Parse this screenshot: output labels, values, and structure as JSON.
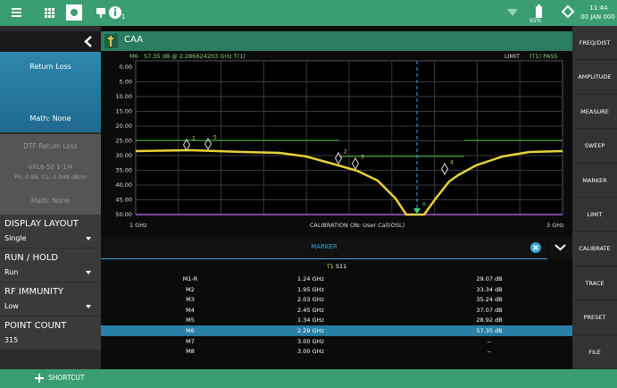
{
  "status_bar": {
    "notification_count": "1",
    "battery": "95%",
    "time": "11:44",
    "date": "00 JAN 000"
  },
  "left_panel": {
    "trace_1": {
      "title": "Return Loss",
      "math": "Math: None"
    },
    "trace_2": {
      "title": "DTF Return Loss",
      "cable": "VXL6-50 1-1/4",
      "params": "PV: 0.88, CL: 0.048 dB/m",
      "math": "Math: None"
    },
    "settings": [
      {
        "label": "DISPLAY LAYOUT",
        "value": "Single",
        "dropdown": true
      },
      {
        "label": "RUN / HOLD",
        "value": "Run",
        "dropdown": true
      },
      {
        "label": "RF IMMUNITY",
        "value": "Low",
        "dropdown": true
      },
      {
        "label": "POINT COUNT",
        "value": "315",
        "dropdown": false
      }
    ]
  },
  "main": {
    "title": "CAA",
    "marker_readout": "M6   57.35 dB @ 2.286624203 GHz T(1)",
    "limit_status": "LIMIT",
    "limit_result": "(T1) PASS",
    "yticks": [
      "0.00",
      "5.00",
      "10.00",
      "15.00",
      "20.00",
      "25.00",
      "30.00",
      "35.00",
      "40.00",
      "45.00",
      "50.00"
    ],
    "trace_markers": [
      "1",
      "5",
      "2",
      "3",
      "4",
      "6"
    ],
    "x_start": "1 GHz",
    "calibration": "CALIBRATION ON: User Cal(iOSL)",
    "x_stop": "3 GHz"
  },
  "marker_table": {
    "title": "MARKER",
    "trace": "T1",
    "param": "S11",
    "rows": [
      [
        "M1-R",
        "1.24 GHz",
        "29.07 dB"
      ],
      [
        "M2",
        "1.95 GHz",
        "33.34 dB"
      ],
      [
        "M3",
        "2.03 GHz",
        "35.24 dB"
      ],
      [
        "M4",
        "2.45 GHz",
        "37.07 dB"
      ],
      [
        "M5",
        "1.34 GHz",
        "28.92 dB"
      ],
      [
        "M6",
        "2.29 GHz",
        "57.35 dB"
      ],
      [
        "M7",
        "3.00 GHz",
        "--"
      ],
      [
        "M8",
        "3.00 GHz",
        "--"
      ]
    ],
    "selected_row": 5
  },
  "softkeys": [
    "FREQ/DIST",
    "AMPLITUDE",
    "MEASURE",
    "SWEEP",
    "MARKER",
    "LIMIT",
    "CALIBRATE",
    "TRACE",
    "PRESET",
    "FILE"
  ],
  "shortcut": "SHORTCUT"
}
